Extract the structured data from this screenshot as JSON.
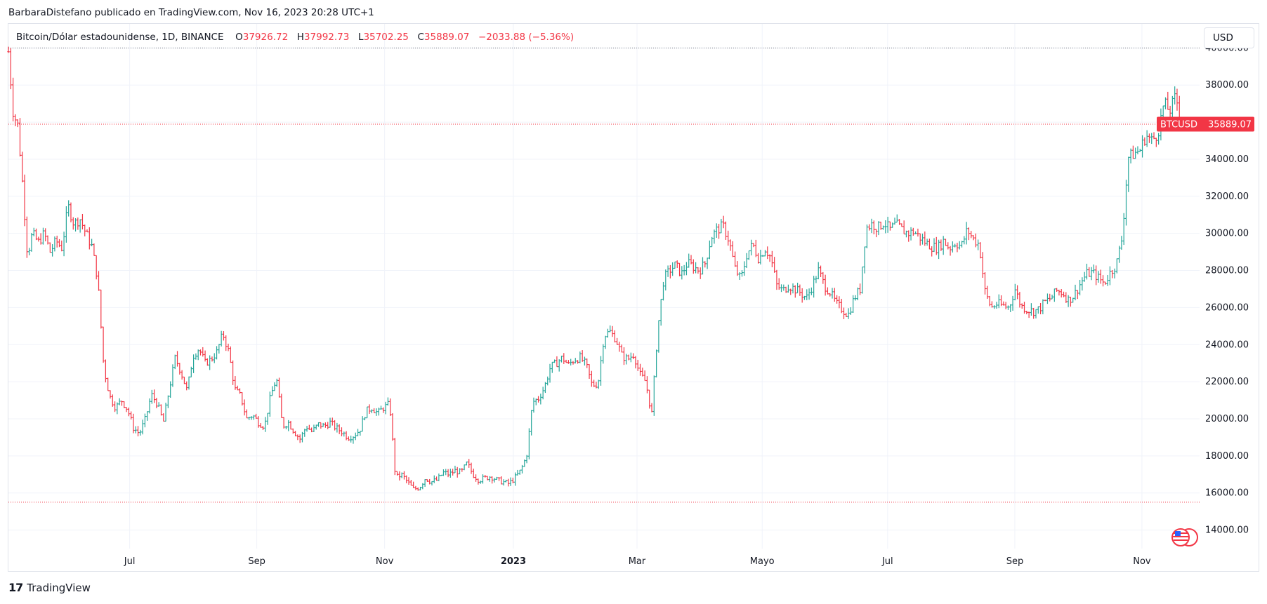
{
  "header": {
    "publisher_line": "BarbaraDistefano publicado en TradingView.com, Nov 16, 2023 20:28 UTC+1"
  },
  "legend": {
    "symbol": "Bitcoin/Dólar estadounidense, 1D, BINANCE",
    "o_label": "O",
    "o_value": "37926.72",
    "h_label": "H",
    "h_value": "37992.73",
    "l_label": "L",
    "l_value": "35702.25",
    "c_label": "C",
    "c_value": "35889.07",
    "change": "−2033.88 (−5.36%)"
  },
  "currency_button": "USD",
  "price_tag": {
    "symbol": "BTCUSD",
    "value": "35889.07"
  },
  "footer": {
    "logo_text": "TradingView"
  },
  "colors": {
    "up": "#26a69a",
    "down": "#f23645",
    "grid": "#f0f3fa",
    "axis_text": "#131722"
  },
  "chart_data": {
    "type": "ohlc",
    "title": "Bitcoin/Dólar estadounidense, 1D, BINANCE",
    "y_ticks": [
      "40000.00",
      "38000.00",
      "36000.00",
      "34000.00",
      "32000.00",
      "30000.00",
      "28000.00",
      "26000.00",
      "24000.00",
      "22000.00",
      "20000.00",
      "18000.00",
      "16000.00",
      "14000.00"
    ],
    "x_ticks": [
      {
        "label": "Jul",
        "t": 0.1018,
        "bold": false
      },
      {
        "label": "Sep",
        "t": 0.2085,
        "bold": false
      },
      {
        "label": "Nov",
        "t": 0.3158,
        "bold": false
      },
      {
        "label": "2023",
        "t": 0.4239,
        "bold": true
      },
      {
        "label": "Mar",
        "t": 0.5277,
        "bold": false
      },
      {
        "label": "Mayo",
        "t": 0.6328,
        "bold": false
      },
      {
        "label": "Jul",
        "t": 0.7381,
        "bold": false
      },
      {
        "label": "Sep",
        "t": 0.8449,
        "bold": false
      },
      {
        "label": "Nov",
        "t": 0.9516,
        "bold": false
      }
    ],
    "ylim": [
      13000,
      41300
    ],
    "grid": true,
    "horizontal_lines": [
      {
        "value": 40000,
        "color": "#787b86"
      },
      {
        "value": 35889.07,
        "color": "#f23645"
      },
      {
        "value": 15500,
        "color": "#f23645"
      }
    ],
    "price_path": [
      [
        0,
        39800
      ],
      [
        0.004,
        36500
      ],
      [
        0.008,
        35800
      ],
      [
        0.012,
        32500
      ],
      [
        0.016,
        28800
      ],
      [
        0.02,
        30000
      ],
      [
        0.025,
        29500
      ],
      [
        0.03,
        30000
      ],
      [
        0.035,
        29000
      ],
      [
        0.04,
        29600
      ],
      [
        0.045,
        29200
      ],
      [
        0.05,
        31500
      ],
      [
        0.055,
        30500
      ],
      [
        0.06,
        30800
      ],
      [
        0.065,
        30000
      ],
      [
        0.07,
        29300
      ],
      [
        0.075,
        27500
      ],
      [
        0.08,
        22800
      ],
      [
        0.085,
        21200
      ],
      [
        0.09,
        20600
      ],
      [
        0.095,
        21000
      ],
      [
        0.1,
        20500
      ],
      [
        0.105,
        19500
      ],
      [
        0.11,
        19200
      ],
      [
        0.115,
        20000
      ],
      [
        0.12,
        21300
      ],
      [
        0.125,
        20800
      ],
      [
        0.13,
        19800
      ],
      [
        0.135,
        21600
      ],
      [
        0.14,
        23300
      ],
      [
        0.145,
        22500
      ],
      [
        0.15,
        21500
      ],
      [
        0.155,
        23400
      ],
      [
        0.16,
        23800
      ],
      [
        0.165,
        23000
      ],
      [
        0.17,
        23200
      ],
      [
        0.175,
        23600
      ],
      [
        0.18,
        24600
      ],
      [
        0.185,
        23600
      ],
      [
        0.19,
        21600
      ],
      [
        0.195,
        21200
      ],
      [
        0.2,
        20000
      ],
      [
        0.205,
        20200
      ],
      [
        0.21,
        19800
      ],
      [
        0.215,
        19600
      ],
      [
        0.22,
        21200
      ],
      [
        0.225,
        22200
      ],
      [
        0.23,
        19600
      ],
      [
        0.235,
        19800
      ],
      [
        0.24,
        19300
      ],
      [
        0.245,
        18900
      ],
      [
        0.25,
        19600
      ],
      [
        0.255,
        19300
      ],
      [
        0.26,
        19700
      ],
      [
        0.265,
        19600
      ],
      [
        0.27,
        19800
      ],
      [
        0.275,
        19500
      ],
      [
        0.28,
        19300
      ],
      [
        0.285,
        19000
      ],
      [
        0.29,
        19100
      ],
      [
        0.295,
        19400
      ],
      [
        0.3,
        20400
      ],
      [
        0.305,
        20600
      ],
      [
        0.31,
        20300
      ],
      [
        0.315,
        20600
      ],
      [
        0.32,
        20800
      ],
      [
        0.325,
        16800
      ],
      [
        0.33,
        17000
      ],
      [
        0.335,
        16600
      ],
      [
        0.34,
        16200
      ],
      [
        0.345,
        16300
      ],
      [
        0.35,
        16800
      ],
      [
        0.355,
        16600
      ],
      [
        0.36,
        16700
      ],
      [
        0.365,
        17100
      ],
      [
        0.37,
        17000
      ],
      [
        0.375,
        17200
      ],
      [
        0.38,
        17100
      ],
      [
        0.385,
        17600
      ],
      [
        0.39,
        17000
      ],
      [
        0.395,
        16700
      ],
      [
        0.4,
        16800
      ],
      [
        0.405,
        16900
      ],
      [
        0.41,
        16700
      ],
      [
        0.415,
        16600
      ],
      [
        0.42,
        16500
      ],
      [
        0.425,
        16800
      ],
      [
        0.43,
        17200
      ],
      [
        0.435,
        18000
      ],
      [
        0.44,
        20900
      ],
      [
        0.445,
        21100
      ],
      [
        0.45,
        21700
      ],
      [
        0.455,
        22800
      ],
      [
        0.46,
        23000
      ],
      [
        0.465,
        23300
      ],
      [
        0.47,
        22900
      ],
      [
        0.475,
        23200
      ],
      [
        0.48,
        23300
      ],
      [
        0.485,
        22900
      ],
      [
        0.49,
        21800
      ],
      [
        0.495,
        21900
      ],
      [
        0.5,
        24500
      ],
      [
        0.505,
        24700
      ],
      [
        0.51,
        24300
      ],
      [
        0.515,
        23400
      ],
      [
        0.52,
        23200
      ],
      [
        0.525,
        23500
      ],
      [
        0.53,
        22400
      ],
      [
        0.535,
        22000
      ],
      [
        0.54,
        20200
      ],
      [
        0.545,
        24800
      ],
      [
        0.55,
        27500
      ],
      [
        0.555,
        28000
      ],
      [
        0.56,
        28300
      ],
      [
        0.565,
        27800
      ],
      [
        0.57,
        28400
      ],
      [
        0.575,
        28200
      ],
      [
        0.58,
        28000
      ],
      [
        0.585,
        28400
      ],
      [
        0.59,
        29800
      ],
      [
        0.595,
        30200
      ],
      [
        0.6,
        30400
      ],
      [
        0.605,
        29600
      ],
      [
        0.61,
        28100
      ],
      [
        0.615,
        27500
      ],
      [
        0.62,
        28900
      ],
      [
        0.625,
        29400
      ],
      [
        0.63,
        28600
      ],
      [
        0.635,
        29200
      ],
      [
        0.64,
        28700
      ],
      [
        0.645,
        27200
      ],
      [
        0.65,
        26900
      ],
      [
        0.655,
        27200
      ],
      [
        0.66,
        27000
      ],
      [
        0.665,
        26800
      ],
      [
        0.67,
        26500
      ],
      [
        0.675,
        27200
      ],
      [
        0.68,
        28000
      ],
      [
        0.685,
        27200
      ],
      [
        0.69,
        26800
      ],
      [
        0.695,
        26200
      ],
      [
        0.7,
        25900
      ],
      [
        0.705,
        25600
      ],
      [
        0.71,
        26500
      ],
      [
        0.715,
        27000
      ],
      [
        0.72,
        30300
      ],
      [
        0.725,
        30500
      ],
      [
        0.73,
        30300
      ],
      [
        0.735,
        30600
      ],
      [
        0.74,
        30200
      ],
      [
        0.745,
        30500
      ],
      [
        0.75,
        30200
      ],
      [
        0.755,
        30000
      ],
      [
        0.76,
        30100
      ],
      [
        0.765,
        29800
      ],
      [
        0.77,
        29500
      ],
      [
        0.775,
        29300
      ],
      [
        0.78,
        29200
      ],
      [
        0.785,
        29600
      ],
      [
        0.79,
        29200
      ],
      [
        0.795,
        29500
      ],
      [
        0.8,
        29300
      ],
      [
        0.805,
        30200
      ],
      [
        0.81,
        29700
      ],
      [
        0.815,
        29400
      ],
      [
        0.82,
        26800
      ],
      [
        0.825,
        26000
      ],
      [
        0.83,
        26200
      ],
      [
        0.835,
        26100
      ],
      [
        0.84,
        26000
      ],
      [
        0.845,
        27000
      ],
      [
        0.85,
        26100
      ],
      [
        0.855,
        25900
      ],
      [
        0.86,
        25800
      ],
      [
        0.865,
        25900
      ],
      [
        0.87,
        26300
      ],
      [
        0.875,
        26500
      ],
      [
        0.88,
        26900
      ],
      [
        0.885,
        26800
      ],
      [
        0.89,
        26400
      ],
      [
        0.895,
        26700
      ],
      [
        0.9,
        27300
      ],
      [
        0.905,
        27800
      ],
      [
        0.91,
        27900
      ],
      [
        0.915,
        27600
      ],
      [
        0.92,
        27300
      ],
      [
        0.925,
        27900
      ],
      [
        0.93,
        28300
      ],
      [
        0.935,
        29800
      ],
      [
        0.94,
        34100
      ],
      [
        0.945,
        34300
      ],
      [
        0.95,
        34500
      ],
      [
        0.955,
        35300
      ],
      [
        0.96,
        35000
      ],
      [
        0.965,
        35400
      ],
      [
        0.97,
        37000
      ],
      [
        0.975,
        36600
      ],
      [
        0.98,
        37400
      ],
      [
        0.985,
        35900
      ]
    ]
  }
}
